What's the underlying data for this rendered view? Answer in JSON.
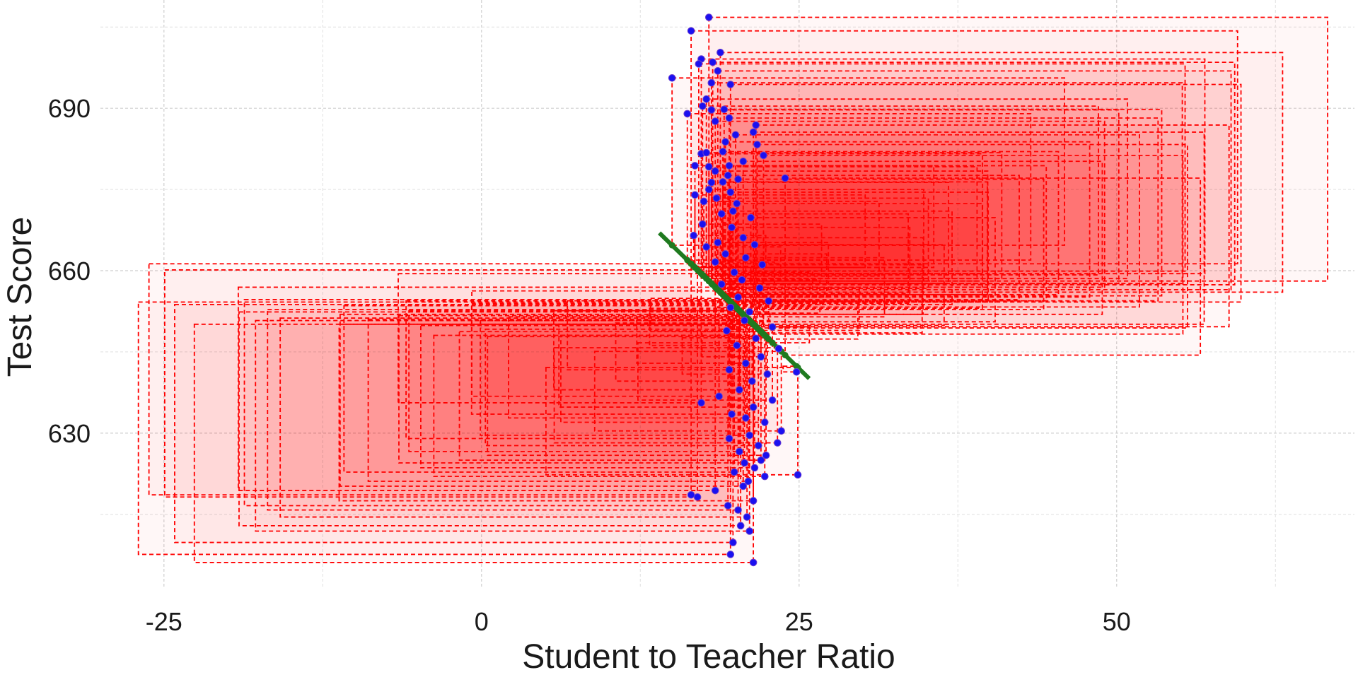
{
  "chart_data": {
    "type": "scatter",
    "title": "",
    "xlabel": "Student to Teacher Ratio",
    "ylabel": "Test Score",
    "xlim": [
      -30,
      69
    ],
    "ylim": [
      601,
      710
    ],
    "x_ticks": [
      -25,
      0,
      25,
      50
    ],
    "x_tick_labels": [
      "-25",
      "0",
      "25",
      "50"
    ],
    "y_ticks": [
      630,
      660,
      690
    ],
    "y_tick_labels": [
      "630",
      "660",
      "690"
    ],
    "grid": true,
    "legend": "none",
    "regression": {
      "intercept": 698.9,
      "slope": -2.28,
      "x_range": [
        14,
        25.8
      ]
    },
    "points": [
      {
        "x": 17.9,
        "y": 706.8
      },
      {
        "x": 16.5,
        "y": 704.3
      },
      {
        "x": 18.8,
        "y": 700.3
      },
      {
        "x": 17.3,
        "y": 699.1
      },
      {
        "x": 17.1,
        "y": 698.2
      },
      {
        "x": 18.2,
        "y": 698.5
      },
      {
        "x": 18.6,
        "y": 696.9
      },
      {
        "x": 15.0,
        "y": 695.6
      },
      {
        "x": 19.6,
        "y": 694.4
      },
      {
        "x": 18.1,
        "y": 694.7
      },
      {
        "x": 17.7,
        "y": 691.7
      },
      {
        "x": 17.4,
        "y": 690.4
      },
      {
        "x": 18.1,
        "y": 689.7
      },
      {
        "x": 19.1,
        "y": 689.8
      },
      {
        "x": 16.2,
        "y": 689.0
      },
      {
        "x": 19.5,
        "y": 688.2
      },
      {
        "x": 20.0,
        "y": 685.1
      },
      {
        "x": 21.4,
        "y": 685.6
      },
      {
        "x": 21.6,
        "y": 686.9
      },
      {
        "x": 18.4,
        "y": 687.6
      },
      {
        "x": 21.7,
        "y": 683.3
      },
      {
        "x": 19.2,
        "y": 683.8
      },
      {
        "x": 22.2,
        "y": 681.3
      },
      {
        "x": 17.3,
        "y": 681.6
      },
      {
        "x": 17.7,
        "y": 681.8
      },
      {
        "x": 19.0,
        "y": 682.0
      },
      {
        "x": 19.5,
        "y": 679.4
      },
      {
        "x": 20.6,
        "y": 680.2
      },
      {
        "x": 16.8,
        "y": 679.4
      },
      {
        "x": 17.9,
        "y": 679.2
      },
      {
        "x": 18.4,
        "y": 678.4
      },
      {
        "x": 19.4,
        "y": 677.6
      },
      {
        "x": 20.2,
        "y": 676.9
      },
      {
        "x": 18.1,
        "y": 676.3
      },
      {
        "x": 19.0,
        "y": 676.4
      },
      {
        "x": 23.9,
        "y": 677.1
      },
      {
        "x": 17.9,
        "y": 675.0
      },
      {
        "x": 16.8,
        "y": 674.0
      },
      {
        "x": 19.6,
        "y": 674.5
      },
      {
        "x": 18.5,
        "y": 673.4
      },
      {
        "x": 17.5,
        "y": 672.8
      },
      {
        "x": 20.1,
        "y": 672.4
      },
      {
        "x": 19.8,
        "y": 671.0
      },
      {
        "x": 18.9,
        "y": 670.5
      },
      {
        "x": 21.2,
        "y": 669.8
      },
      {
        "x": 17.4,
        "y": 668.6
      },
      {
        "x": 19.7,
        "y": 668.0
      },
      {
        "x": 16.7,
        "y": 666.5
      },
      {
        "x": 20.6,
        "y": 666.1
      },
      {
        "x": 18.6,
        "y": 665.2
      },
      {
        "x": 17.7,
        "y": 664.4
      },
      {
        "x": 21.5,
        "y": 664.8
      },
      {
        "x": 19.2,
        "y": 663.1
      },
      {
        "x": 20.8,
        "y": 662.4
      },
      {
        "x": 18.4,
        "y": 661.6
      },
      {
        "x": 22.1,
        "y": 661.1
      },
      {
        "x": 19.9,
        "y": 659.7
      },
      {
        "x": 20.5,
        "y": 658.3
      },
      {
        "x": 18.9,
        "y": 657.5
      },
      {
        "x": 21.9,
        "y": 656.8
      },
      {
        "x": 20.2,
        "y": 655.1
      },
      {
        "x": 22.6,
        "y": 654.4
      },
      {
        "x": 19.6,
        "y": 653.2
      },
      {
        "x": 21.1,
        "y": 652.4
      },
      {
        "x": 20.7,
        "y": 650.8
      },
      {
        "x": 22.9,
        "y": 649.6
      },
      {
        "x": 19.3,
        "y": 648.9
      },
      {
        "x": 21.6,
        "y": 647.5
      },
      {
        "x": 20.1,
        "y": 646.2
      },
      {
        "x": 23.4,
        "y": 645.6
      },
      {
        "x": 22.0,
        "y": 644.1
      },
      {
        "x": 20.8,
        "y": 642.9
      },
      {
        "x": 19.5,
        "y": 641.7
      },
      {
        "x": 22.5,
        "y": 640.9
      },
      {
        "x": 21.3,
        "y": 639.6
      },
      {
        "x": 24.8,
        "y": 641.3
      },
      {
        "x": 20.3,
        "y": 638.0
      },
      {
        "x": 18.7,
        "y": 636.8
      },
      {
        "x": 22.9,
        "y": 636.1
      },
      {
        "x": 17.3,
        "y": 635.6
      },
      {
        "x": 21.4,
        "y": 634.8
      },
      {
        "x": 19.7,
        "y": 633.5
      },
      {
        "x": 20.8,
        "y": 632.8
      },
      {
        "x": 22.3,
        "y": 632.0
      },
      {
        "x": 23.6,
        "y": 630.4
      },
      {
        "x": 21.1,
        "y": 629.6
      },
      {
        "x": 19.5,
        "y": 629.0
      },
      {
        "x": 23.3,
        "y": 628.2
      },
      {
        "x": 21.8,
        "y": 627.7
      },
      {
        "x": 20.3,
        "y": 626.6
      },
      {
        "x": 22.4,
        "y": 625.9
      },
      {
        "x": 22.0,
        "y": 625.0
      },
      {
        "x": 20.7,
        "y": 624.5
      },
      {
        "x": 21.5,
        "y": 623.6
      },
      {
        "x": 19.9,
        "y": 622.8
      },
      {
        "x": 22.3,
        "y": 622.0
      },
      {
        "x": 24.9,
        "y": 622.3
      },
      {
        "x": 21.0,
        "y": 621.1
      },
      {
        "x": 20.6,
        "y": 620.2
      },
      {
        "x": 18.4,
        "y": 619.4
      },
      {
        "x": 16.5,
        "y": 618.6
      },
      {
        "x": 17.0,
        "y": 618.2
      },
      {
        "x": 21.4,
        "y": 617.5
      },
      {
        "x": 19.4,
        "y": 616.6
      },
      {
        "x": 20.2,
        "y": 615.8
      },
      {
        "x": 20.9,
        "y": 614.5
      },
      {
        "x": 20.4,
        "y": 612.9
      },
      {
        "x": 21.1,
        "y": 611.9
      },
      {
        "x": 19.8,
        "y": 609.8
      },
      {
        "x": 19.6,
        "y": 607.6
      },
      {
        "x": 21.4,
        "y": 606.1
      }
    ]
  }
}
